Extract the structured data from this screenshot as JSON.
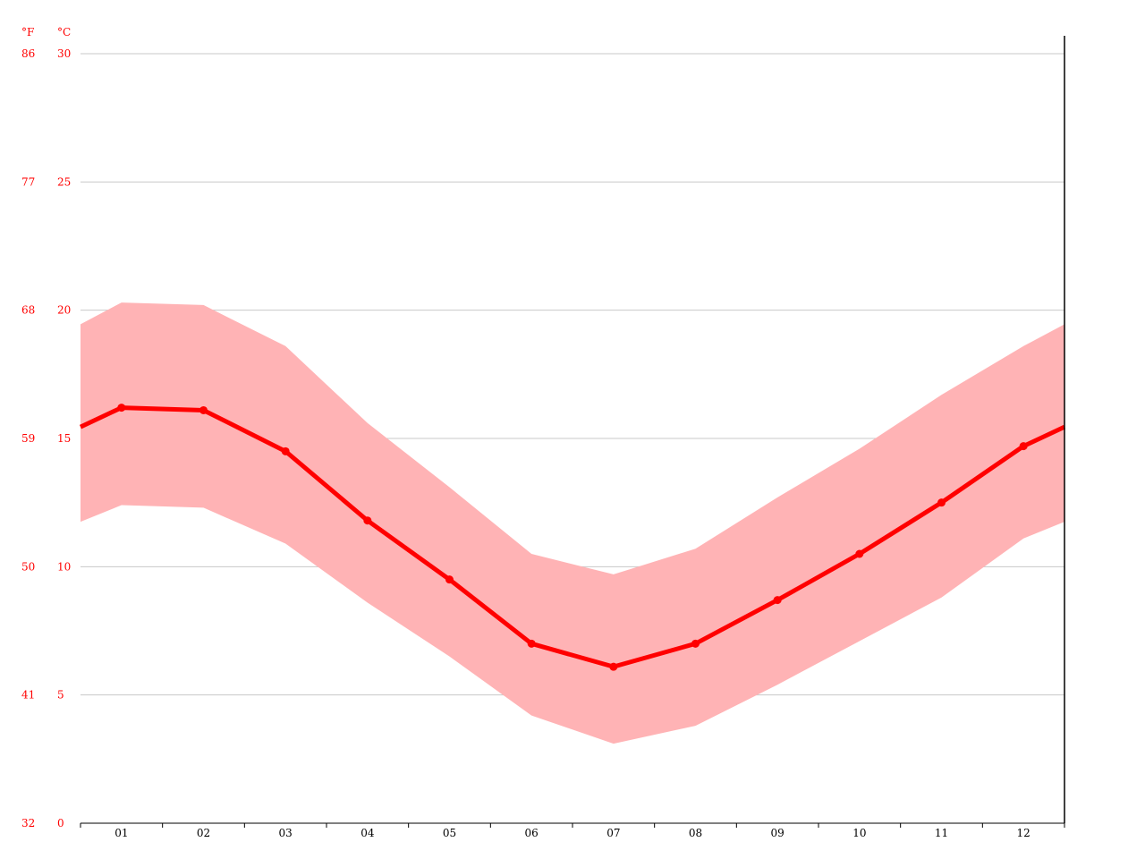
{
  "chart_data": {
    "type": "area",
    "categories": [
      "01",
      "02",
      "03",
      "04",
      "05",
      "06",
      "07",
      "08",
      "09",
      "10",
      "11",
      "12"
    ],
    "series": [
      {
        "values": [
          16.2,
          16.1,
          14.5,
          11.8,
          9.5,
          7.0,
          6.1,
          7.0,
          8.7,
          10.5,
          12.5,
          14.7
        ]
      },
      {
        "values": [
          20.3,
          20.2,
          18.6,
          15.6,
          13.1,
          10.5,
          9.7,
          10.7,
          12.7,
          14.6,
          16.7,
          18.6
        ]
      },
      {
        "values": [
          12.4,
          12.3,
          10.9,
          8.6,
          6.5,
          4.2,
          3.1,
          3.8,
          5.4,
          7.1,
          8.8,
          11.1
        ]
      }
    ],
    "ylim": [
      0,
      30
    ],
    "y_ticks_c": [
      "0",
      "5",
      "10",
      "15",
      "20",
      "25",
      "30"
    ],
    "y_ticks_f": [
      "32",
      "41",
      "50",
      "59",
      "68",
      "77",
      "86"
    ],
    "unit_f": "°F",
    "unit_c": "°C",
    "grid": true,
    "colors": {
      "line": "#ff0000",
      "band": "#ffb3b5",
      "grid": "#c8c8c8",
      "axis": "#000000",
      "label": "#ff0000"
    }
  }
}
